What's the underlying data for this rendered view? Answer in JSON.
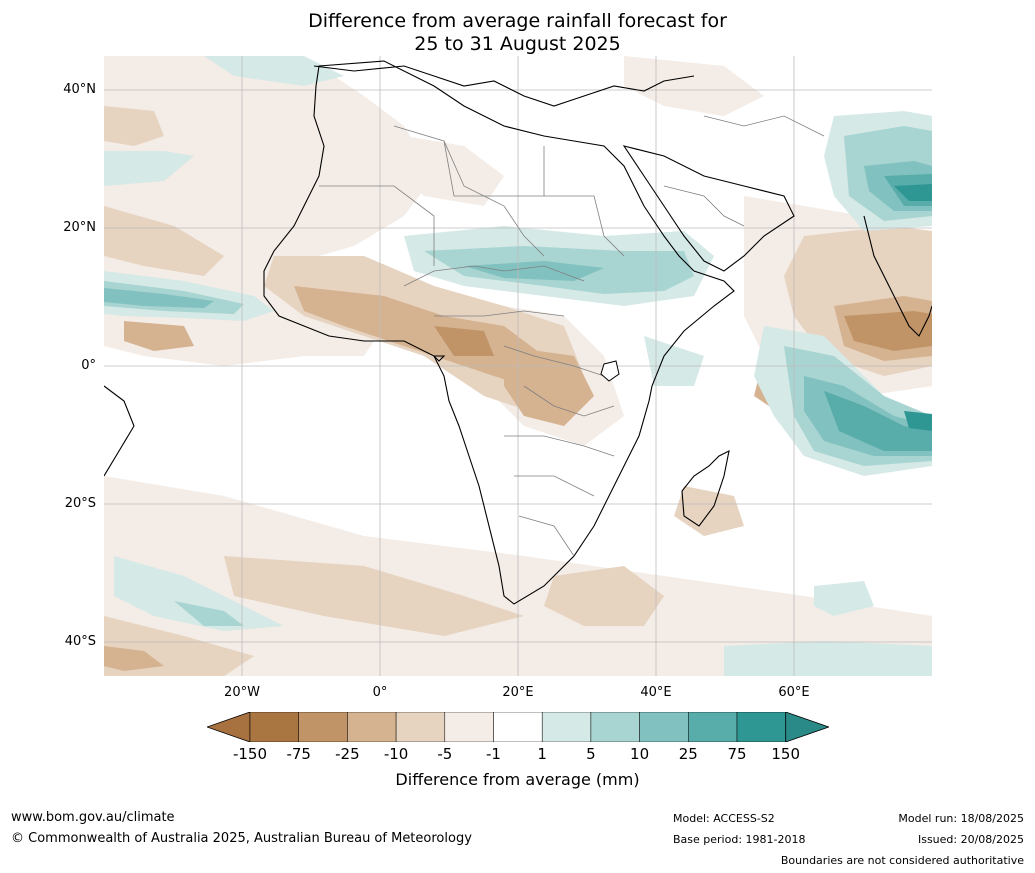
{
  "title": {
    "line1": "Difference from average rainfall forecast for",
    "line2": "25 to 31 August 2025"
  },
  "axes": {
    "lat_labels": [
      "40°N",
      "20°N",
      "0°",
      "20°S",
      "40°S"
    ],
    "lon_labels": [
      "20°W",
      "0°",
      "20°E",
      "40°E",
      "60°E"
    ]
  },
  "colorbar": {
    "label": "Difference from average (mm)",
    "ticks": [
      "-150",
      "-75",
      "-25",
      "-10",
      "-5",
      "-1",
      "1",
      "5",
      "10",
      "25",
      "75",
      "150"
    ],
    "colors": [
      "#a87140",
      "#a97541",
      "#c19467",
      "#d5b290",
      "#e6d3c0",
      "#f4ece6",
      "#ffffff",
      "#d5e9e7",
      "#a8d4d1",
      "#81c1bf",
      "#58aca9",
      "#2f9793",
      "#2a8a87"
    ]
  },
  "footer": {
    "website": "www.bom.gov.au/climate",
    "copyright": "© Commonwealth of Australia 2025, Australian Bureau of Meteorology",
    "model": "Model: ACCESS-S2",
    "base_period": "Base period: 1981-2018",
    "model_run": "Model run: 18/08/2025",
    "issued": "Issued: 20/08/2025",
    "disclaimer": "Boundaries are not considered authoritative"
  }
}
